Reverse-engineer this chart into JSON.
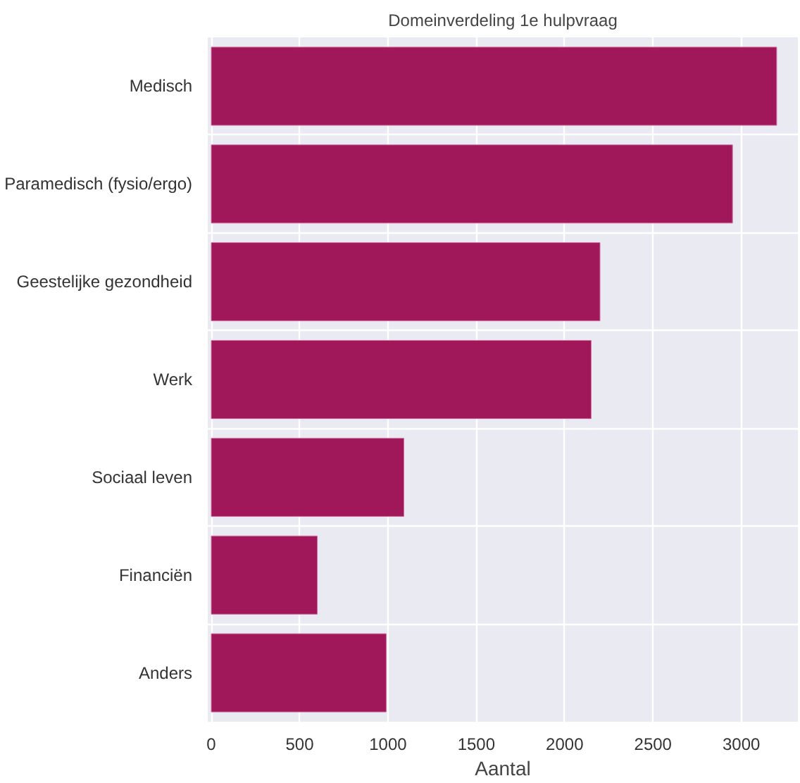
{
  "chart_data": {
    "type": "bar",
    "orientation": "horizontal",
    "title": "Domeinverdeling 1e hulpvraag",
    "xlabel": "Aantal",
    "categories": [
      "Medisch",
      "Paramedisch (fysio/ergo)",
      "Geestelijke gezondheid",
      "Werk",
      "Sociaal leven",
      "Financiën",
      "Anders"
    ],
    "values": [
      3200,
      2950,
      2200,
      2150,
      1090,
      600,
      990
    ],
    "color": "#a0185a",
    "xlim": [
      -20,
      3320
    ],
    "xticks": [
      0,
      500,
      1000,
      1500,
      2000,
      2500,
      3000
    ],
    "grid": true
  }
}
